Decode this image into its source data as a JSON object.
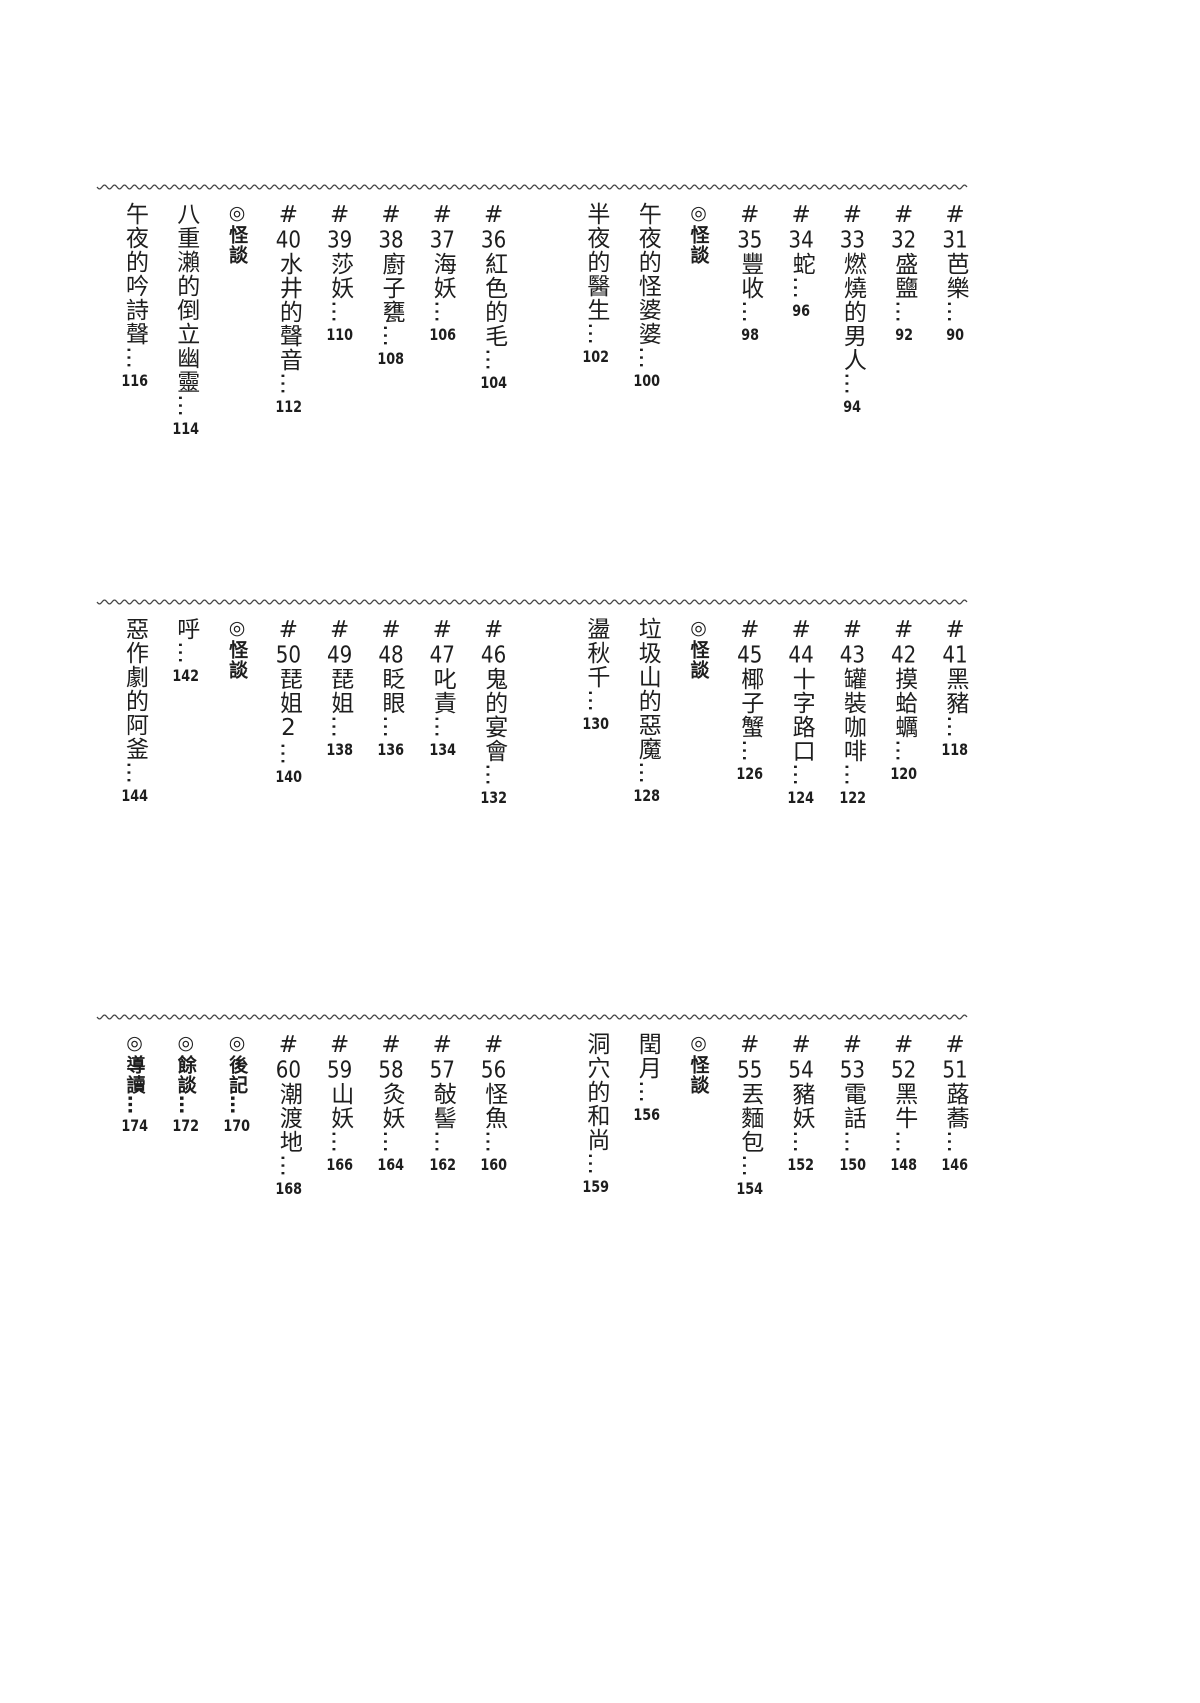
{
  "leader": "…",
  "sections": [
    {
      "entries": [
        {
          "mark": "#",
          "num": "31",
          "title": "芭樂",
          "page": "90"
        },
        {
          "mark": "#",
          "num": "32",
          "title": "盛鹽",
          "page": "92"
        },
        {
          "mark": "#",
          "num": "33",
          "title": "燃燒的男人",
          "page": "94"
        },
        {
          "mark": "#",
          "num": "34",
          "title": "蛇",
          "page": "96"
        },
        {
          "mark": "#",
          "num": "35",
          "title": "豐收",
          "page": "98"
        },
        {
          "mark": "◎",
          "title": "怪談"
        },
        {
          "title": "午夜的怪婆婆",
          "page": "100"
        },
        {
          "title": "半夜的醫生",
          "page": "102"
        },
        {
          "mark": "#",
          "num": "36",
          "title": "紅色的毛",
          "page": "104"
        },
        {
          "mark": "#",
          "num": "37",
          "title": "海妖",
          "page": "106"
        },
        {
          "mark": "#",
          "num": "38",
          "title": "廚子甕",
          "page": "108"
        },
        {
          "mark": "#",
          "num": "39",
          "title": "莎妖",
          "page": "110"
        },
        {
          "mark": "#",
          "num": "40",
          "title": "水井的聲音",
          "page": "112"
        },
        {
          "mark": "◎",
          "title": "怪談"
        },
        {
          "title": "八重瀨的倒立幽靈",
          "page": "114"
        },
        {
          "title": "午夜的吟詩聲",
          "page": "116"
        }
      ]
    },
    {
      "entries": [
        {
          "mark": "#",
          "num": "41",
          "title": "黑豬",
          "page": "118"
        },
        {
          "mark": "#",
          "num": "42",
          "title": "摸蛤蠣",
          "page": "120"
        },
        {
          "mark": "#",
          "num": "43",
          "title": "罐裝咖啡",
          "page": "122"
        },
        {
          "mark": "#",
          "num": "44",
          "title": "十字路口",
          "page": "124"
        },
        {
          "mark": "#",
          "num": "45",
          "title": "椰子蟹",
          "page": "126"
        },
        {
          "mark": "◎",
          "title": "怪談"
        },
        {
          "title": "垃圾山的惡魔",
          "page": "128"
        },
        {
          "title": "盪秋千",
          "page": "130"
        },
        {
          "mark": "#",
          "num": "46",
          "title": "鬼的宴會",
          "page": "132"
        },
        {
          "mark": "#",
          "num": "47",
          "title": "叱責",
          "page": "134"
        },
        {
          "mark": "#",
          "num": "48",
          "title": "眨眼",
          "page": "136"
        },
        {
          "mark": "#",
          "num": "49",
          "title": "琵姐",
          "page": "138"
        },
        {
          "mark": "#",
          "num": "50",
          "title": "琵姐2",
          "page": "140"
        },
        {
          "mark": "◎",
          "title": "怪談"
        },
        {
          "title": "呼",
          "page": "142"
        },
        {
          "title": "惡作劇的阿釜",
          "page": "144"
        }
      ]
    },
    {
      "entries": [
        {
          "mark": "#",
          "num": "51",
          "title": "蕗蕎",
          "page": "146"
        },
        {
          "mark": "#",
          "num": "52",
          "title": "黑牛",
          "page": "148"
        },
        {
          "mark": "#",
          "num": "53",
          "title": "電話",
          "page": "150"
        },
        {
          "mark": "#",
          "num": "54",
          "title": "豬妖",
          "page": "152"
        },
        {
          "mark": "#",
          "num": "55",
          "title": "丟麵包",
          "page": "154"
        },
        {
          "mark": "◎",
          "title": "怪談"
        },
        {
          "title": "閏月",
          "page": "156"
        },
        {
          "title": "洞穴的和尚",
          "page": "159"
        },
        {
          "mark": "#",
          "num": "56",
          "title": "怪魚",
          "page": "160"
        },
        {
          "mark": "#",
          "num": "57",
          "title": "敧髻",
          "page": "162"
        },
        {
          "mark": "#",
          "num": "58",
          "title": "灸妖",
          "page": "164"
        },
        {
          "mark": "#",
          "num": "59",
          "title": "山妖",
          "page": "166"
        },
        {
          "mark": "#",
          "num": "60",
          "title": "潮渡地",
          "page": "168"
        },
        {
          "mark": "◎",
          "title": "後記",
          "page": "170"
        },
        {
          "mark": "◎",
          "title": "餘談",
          "page": "172"
        },
        {
          "mark": "◎",
          "title": "導讀",
          "page": "174"
        }
      ]
    }
  ]
}
